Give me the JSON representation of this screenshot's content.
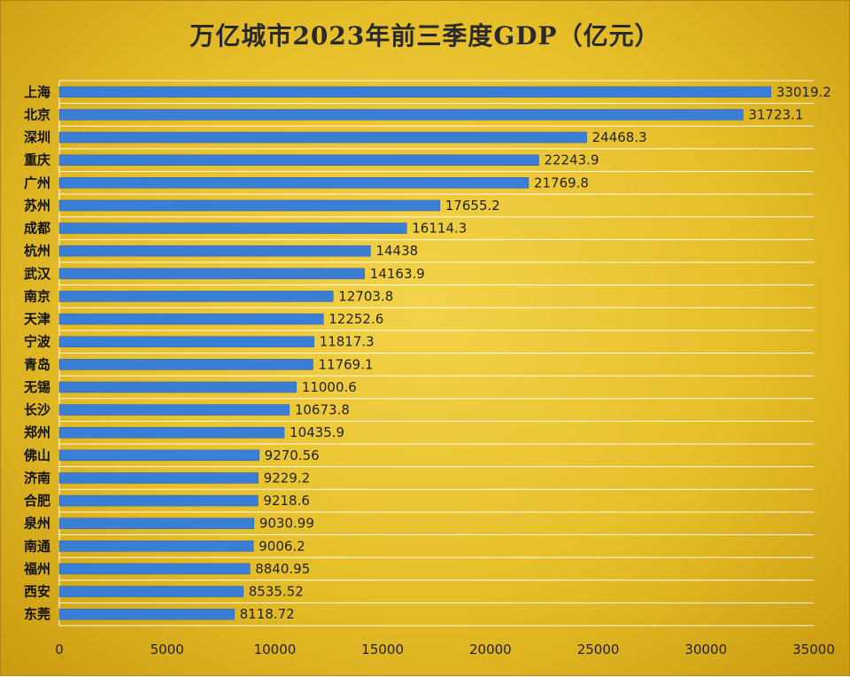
{
  "chart_data": {
    "type": "bar",
    "orientation": "horizontal",
    "title": "万亿城市2023年前三季度GDP（亿元）",
    "categories": [
      "上海",
      "北京",
      "深圳",
      "重庆",
      "广州",
      "苏州",
      "成都",
      "杭州",
      "武汉",
      "南京",
      "天津",
      "宁波",
      "青岛",
      "无锡",
      "长沙",
      "郑州",
      "佛山",
      "济南",
      "合肥",
      "泉州",
      "南通",
      "福州",
      "西安",
      "东莞"
    ],
    "values": [
      33019.2,
      31723.1,
      24468.3,
      22243.9,
      21769.8,
      17655.2,
      16114.3,
      14438,
      14163.9,
      12703.8,
      12252.6,
      11817.3,
      11769.1,
      11000.6,
      10673.8,
      10435.9,
      9270.56,
      9229.2,
      9218.6,
      9030.99,
      9006.2,
      8840.95,
      8535.52,
      8118.72
    ],
    "value_labels": [
      "33019.2",
      "31723.1",
      "24468.3",
      "22243.9",
      "21769.8",
      "17655.2",
      "16114.3",
      "14438",
      "14163.9",
      "12703.8",
      "12252.6",
      "11817.3",
      "11769.1",
      "11000.6",
      "10673.8",
      "10435.9",
      "9270.56",
      "9229.2",
      "9218.6",
      "9030.99",
      "9006.2",
      "8840.95",
      "8535.52",
      "8118.72"
    ],
    "xlim": [
      0,
      35000
    ],
    "xticks": [
      0,
      5000,
      10000,
      15000,
      20000,
      25000,
      30000,
      35000
    ],
    "xlabel": "",
    "ylabel": "",
    "grid": "horizontal separators",
    "bar_color": "#3a7fd5",
    "background": "#e6bf2a"
  }
}
